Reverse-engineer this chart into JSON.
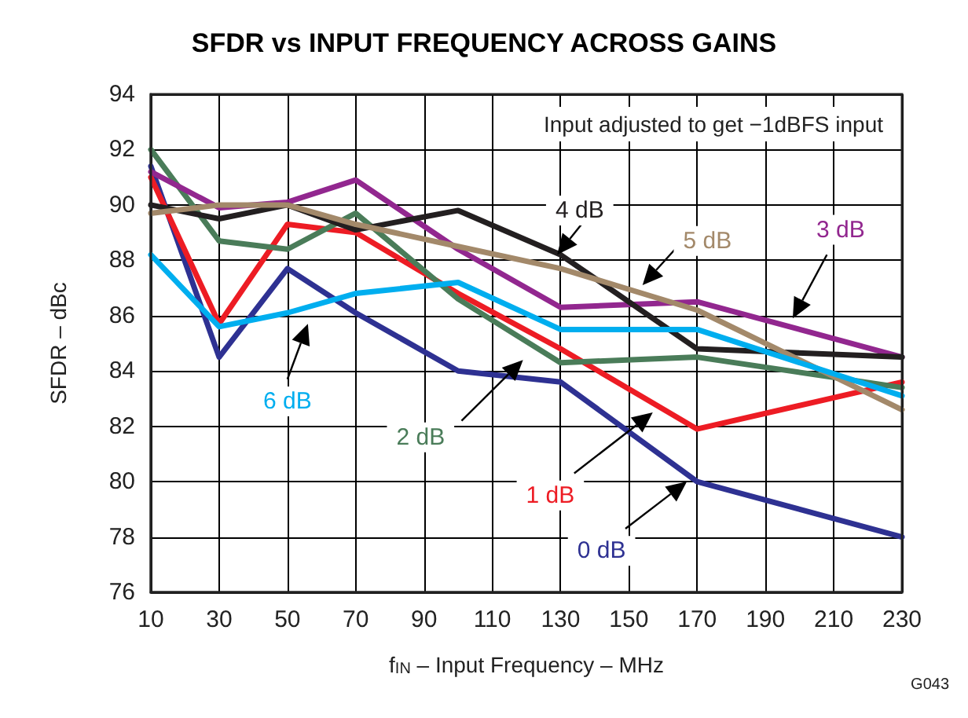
{
  "chart_data": {
    "type": "line",
    "title": "SFDR vs INPUT FREQUENCY ACROSS GAINS",
    "xlabel": "f$_{IN}$ – Input Frequency – MHz",
    "ylabel": "SFDR – dBc",
    "x": [
      10,
      30,
      50,
      70,
      100,
      130,
      170,
      230
    ],
    "series": [
      {
        "name": "0 dB",
        "color": "#2e3192",
        "values": [
          91.4,
          84.5,
          87.7,
          86.1,
          84.0,
          83.6,
          80.0,
          78.0
        ]
      },
      {
        "name": "1 dB",
        "color": "#ed1c24",
        "values": [
          91.0,
          85.7,
          89.3,
          89.0,
          86.8,
          84.8,
          81.9,
          83.6
        ]
      },
      {
        "name": "2 dB",
        "color": "#4a7c59",
        "values": [
          92.0,
          88.7,
          88.4,
          89.7,
          86.6,
          84.3,
          84.5,
          83.4
        ]
      },
      {
        "name": "3 dB",
        "color": "#92278f",
        "values": [
          91.2,
          89.9,
          90.1,
          90.9,
          88.4,
          86.3,
          86.5,
          84.5
        ]
      },
      {
        "name": "4 dB",
        "color": "#231f20",
        "values": [
          90.0,
          89.5,
          90.0,
          89.1,
          89.8,
          88.2,
          84.8,
          84.5
        ]
      },
      {
        "name": "5 dB",
        "color": "#a3896a",
        "values": [
          89.7,
          90.0,
          90.0,
          89.3,
          88.5,
          87.7,
          86.2,
          82.6
        ]
      },
      {
        "name": "6 dB",
        "color": "#00aeef",
        "values": [
          88.2,
          85.6,
          86.1,
          86.8,
          87.2,
          85.5,
          85.5,
          83.1
        ]
      }
    ],
    "xlim": [
      10,
      230
    ],
    "xticks": [
      10,
      30,
      50,
      70,
      90,
      110,
      130,
      150,
      170,
      190,
      210,
      230
    ],
    "ylim": [
      76,
      94
    ],
    "yticks": [
      76,
      78,
      80,
      82,
      84,
      86,
      88,
      90,
      92,
      94
    ],
    "grid": true,
    "legend": false,
    "marker": "none",
    "line_style": "solid",
    "annotations": [
      "Input adjusted to get −1dBFS input",
      "G043"
    ]
  }
}
